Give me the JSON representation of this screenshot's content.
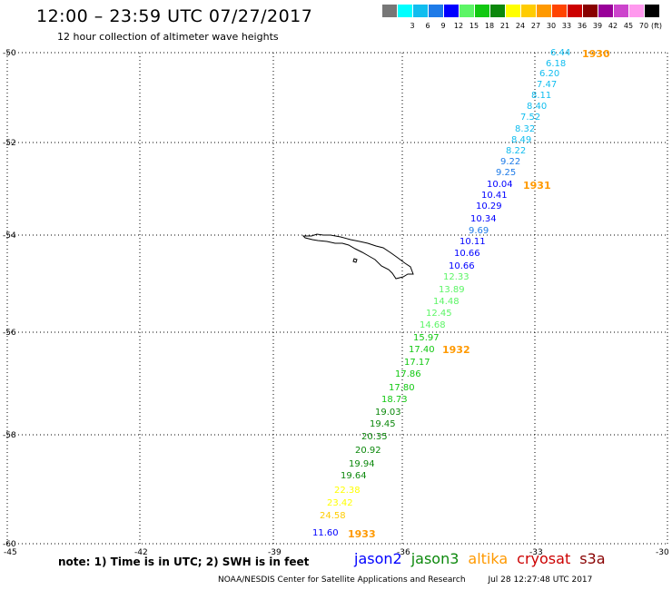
{
  "header": {
    "title": "12:00 – 23:59 UTC 07/27/2017",
    "subtitle": "12 hour collection of altimeter wave heights"
  },
  "legend": {
    "unit": "(ft)",
    "items": [
      {
        "label": "",
        "color": "#777777"
      },
      {
        "label": "3",
        "color": "#00ffff"
      },
      {
        "label": "6",
        "color": "#10bdef"
      },
      {
        "label": "9",
        "color": "#1e7be8"
      },
      {
        "label": "12",
        "color": "#0000ff"
      },
      {
        "label": "15",
        "color": "#5cf566"
      },
      {
        "label": "18",
        "color": "#11c811"
      },
      {
        "label": "21",
        "color": "#0c880c"
      },
      {
        "label": "24",
        "color": "#ffff00"
      },
      {
        "label": "27",
        "color": "#ffcc00"
      },
      {
        "label": "30",
        "color": "#ff9900"
      },
      {
        "label": "33",
        "color": "#ff4400"
      },
      {
        "label": "36",
        "color": "#cc0000"
      },
      {
        "label": "39",
        "color": "#880000"
      },
      {
        "label": "42",
        "color": "#990099"
      },
      {
        "label": "45",
        "color": "#cc44cc"
      },
      {
        "label": "70",
        "color": "#ff99ee"
      },
      {
        "label": "",
        "color": "#000000"
      }
    ]
  },
  "axes": {
    "lon_labels": [
      "-45",
      "-42",
      "-39",
      "-36",
      "-33",
      "-30"
    ],
    "lat_labels": [
      "-50",
      "-52",
      "-54",
      "-56",
      "-58",
      "-60"
    ]
  },
  "passes": [
    {
      "label": "1930",
      "color": "#ff9900"
    },
    {
      "label": "1931",
      "color": "#ff9900"
    },
    {
      "label": "1932",
      "color": "#ff9900"
    },
    {
      "label": "1933",
      "color": "#ff9900"
    }
  ],
  "readings": [
    {
      "value": "6.44",
      "color": "#10bdef"
    },
    {
      "value": "6.18",
      "color": "#10bdef"
    },
    {
      "value": "6.20",
      "color": "#10bdef"
    },
    {
      "value": "7.47",
      "color": "#10bdef"
    },
    {
      "value": "8.11",
      "color": "#10bdef"
    },
    {
      "value": "8.40",
      "color": "#10bdef"
    },
    {
      "value": "7.52",
      "color": "#10bdef"
    },
    {
      "value": "8.32",
      "color": "#10bdef"
    },
    {
      "value": "8.49",
      "color": "#10bdef"
    },
    {
      "value": "8.22",
      "color": "#10bdef"
    },
    {
      "value": "9.22",
      "color": "#1e7be8"
    },
    {
      "value": "9.25",
      "color": "#1e7be8"
    },
    {
      "value": "10.04",
      "color": "#0000ff"
    },
    {
      "value": "10.41",
      "color": "#0000ff"
    },
    {
      "value": "10.29",
      "color": "#0000ff"
    },
    {
      "value": "10.34",
      "color": "#0000ff"
    },
    {
      "value": "9.69",
      "color": "#1e7be8"
    },
    {
      "value": "10.11",
      "color": "#0000ff"
    },
    {
      "value": "10.66",
      "color": "#0000ff"
    },
    {
      "value": "10.66",
      "color": "#0000ff"
    },
    {
      "value": "12.33",
      "color": "#5cf566"
    },
    {
      "value": "13.89",
      "color": "#5cf566"
    },
    {
      "value": "14.48",
      "color": "#5cf566"
    },
    {
      "value": "12.45",
      "color": "#5cf566"
    },
    {
      "value": "14.68",
      "color": "#5cf566"
    },
    {
      "value": "15.97",
      "color": "#11c811"
    },
    {
      "value": "17.40",
      "color": "#11c811"
    },
    {
      "value": "17.17",
      "color": "#11c811"
    },
    {
      "value": "17.86",
      "color": "#11c811"
    },
    {
      "value": "17.80",
      "color": "#11c811"
    },
    {
      "value": "18.73",
      "color": "#11c811"
    },
    {
      "value": "19.03",
      "color": "#0c880c"
    },
    {
      "value": "19.45",
      "color": "#0c880c"
    },
    {
      "value": "20.35",
      "color": "#0c880c"
    },
    {
      "value": "20.92",
      "color": "#0c880c"
    },
    {
      "value": "19.94",
      "color": "#0c880c"
    },
    {
      "value": "19.64",
      "color": "#0c880c"
    },
    {
      "value": "22.38",
      "color": "#ffff00"
    },
    {
      "value": "23.42",
      "color": "#ffff00"
    },
    {
      "value": "24.58",
      "color": "#ffcc00"
    },
    {
      "value": "11.60",
      "color": "#0000ff"
    }
  ],
  "footer": {
    "note": "note: 1) Time is in UTC; 2) SWH is in feet",
    "satellites": [
      {
        "name": "jason2",
        "color": "#0000ff"
      },
      {
        "name": "jason3",
        "color": "#0c880c"
      },
      {
        "name": "altika",
        "color": "#ff9900"
      },
      {
        "name": "cryosat",
        "color": "#cc0000"
      },
      {
        "name": "s3a",
        "color": "#880000"
      }
    ],
    "credit": "NOAA/NESDIS Center for Satellite Applications and Research",
    "timestamp": "Jul 28 12:27:48 UTC 2017"
  }
}
